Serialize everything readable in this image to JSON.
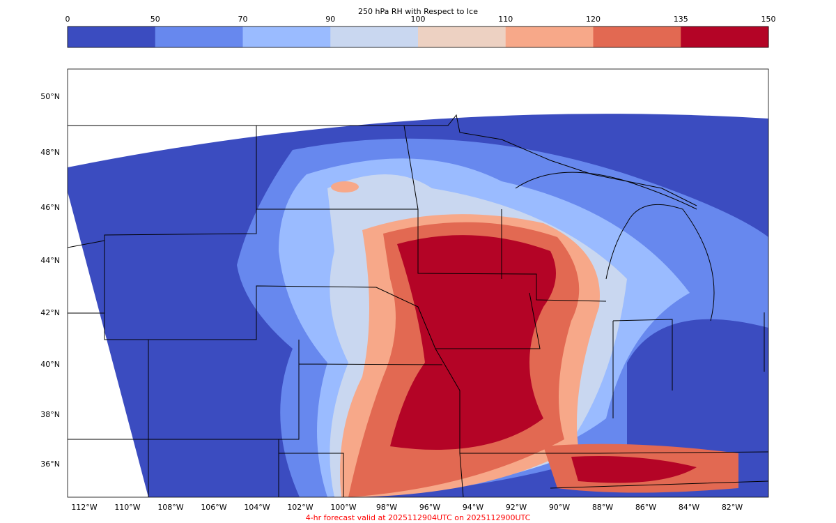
{
  "colorbar": {
    "title": "250 hPa RH with Respect to Ice",
    "ticks": [
      0,
      50,
      70,
      90,
      100,
      110,
      120,
      135,
      150
    ],
    "colors": [
      "#3b4cc0",
      "#6788ee",
      "#9abbff",
      "#c9d7f0",
      "#edd1c2",
      "#f7a889",
      "#e26952",
      "#b40426"
    ]
  },
  "map": {
    "lat_labels": [
      "50°N",
      "48°N",
      "46°N",
      "44°N",
      "42°N",
      "40°N",
      "38°N",
      "36°N"
    ],
    "lon_labels": [
      "112°W",
      "110°W",
      "108°W",
      "106°W",
      "104°W",
      "102°W",
      "100°W",
      "98°W",
      "96°W",
      "94°W",
      "92°W",
      "90°W",
      "88°W",
      "86°W",
      "84°W",
      "82°W"
    ]
  },
  "footer": "4-hr forecast valid at 2025112904UTC on 2025112900UTC"
}
